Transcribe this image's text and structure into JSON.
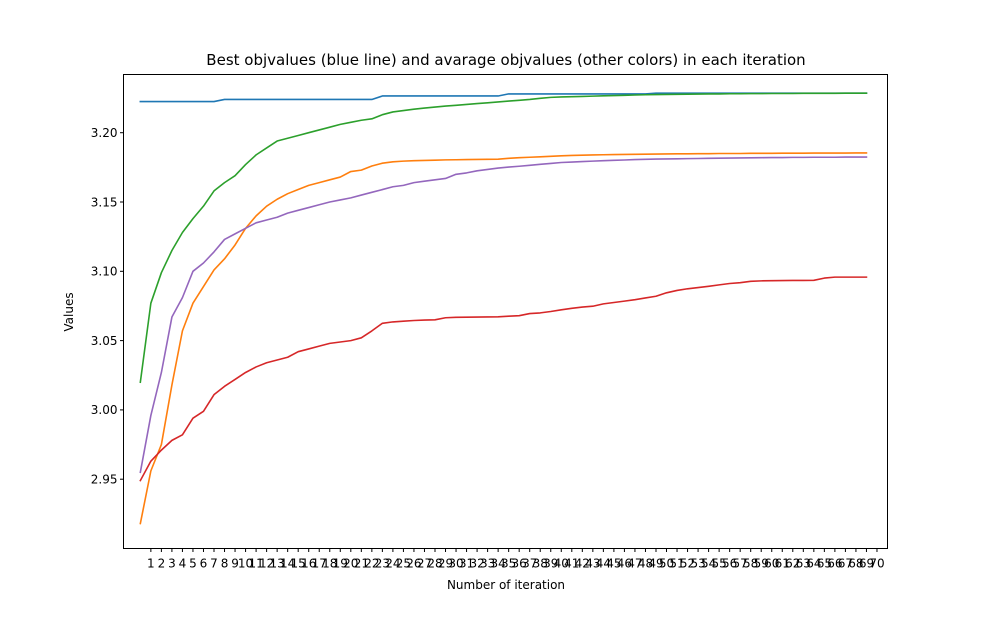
{
  "chart_data": {
    "type": "line",
    "title": "Best objvalues (blue line) and avarage objvalues (other colors) in each iteration",
    "xlabel": "Number of iteration",
    "ylabel": "Values",
    "xlim": [
      -1.6,
      71.0
    ],
    "ylim": [
      2.9,
      3.242
    ],
    "x_ticks": [
      1,
      2,
      3,
      4,
      5,
      6,
      7,
      8,
      9,
      10,
      11,
      12,
      13,
      14,
      15,
      16,
      17,
      18,
      19,
      20,
      21,
      22,
      23,
      24,
      25,
      26,
      27,
      28,
      29,
      30,
      31,
      32,
      33,
      34,
      35,
      36,
      37,
      38,
      39,
      40,
      41,
      42,
      43,
      44,
      45,
      46,
      47,
      48,
      49,
      50,
      51,
      52,
      53,
      54,
      55,
      56,
      57,
      58,
      59,
      60,
      61,
      62,
      63,
      64,
      65,
      66,
      67,
      68,
      69,
      70
    ],
    "y_ticks": [
      2.95,
      3.0,
      3.05,
      3.1,
      3.15,
      3.2
    ],
    "y_tick_labels": [
      "2.95",
      "3.00",
      "3.05",
      "3.10",
      "3.15",
      "3.20"
    ],
    "grid": false,
    "legend": "none",
    "x": [
      0,
      1,
      2,
      3,
      4,
      5,
      6,
      7,
      8,
      9,
      10,
      11,
      12,
      13,
      14,
      15,
      16,
      17,
      18,
      19,
      20,
      21,
      22,
      23,
      24,
      25,
      26,
      27,
      28,
      29,
      30,
      31,
      32,
      33,
      34,
      35,
      36,
      37,
      38,
      39,
      40,
      41,
      42,
      43,
      44,
      45,
      46,
      47,
      48,
      49,
      50,
      51,
      52,
      53,
      54,
      55,
      56,
      57,
      58,
      59,
      60,
      61,
      62,
      63,
      64,
      65,
      66,
      67,
      68,
      69
    ],
    "series": [
      {
        "color": "#1f77b4",
        "values": [
          3.2225,
          3.2225,
          3.2225,
          3.2225,
          3.2225,
          3.2225,
          3.2225,
          3.2225,
          3.224,
          3.224,
          3.224,
          3.224,
          3.224,
          3.224,
          3.224,
          3.224,
          3.224,
          3.224,
          3.224,
          3.224,
          3.224,
          3.224,
          3.224,
          3.2265,
          3.2265,
          3.2265,
          3.2265,
          3.2265,
          3.2265,
          3.2265,
          3.2265,
          3.2265,
          3.2265,
          3.2265,
          3.2265,
          3.228,
          3.228,
          3.228,
          3.228,
          3.228,
          3.228,
          3.228,
          3.228,
          3.228,
          3.228,
          3.228,
          3.228,
          3.228,
          3.228,
          3.2285,
          3.2285,
          3.2285,
          3.2285,
          3.2285,
          3.2285,
          3.2285,
          3.2285,
          3.2285,
          3.2285,
          3.2285,
          3.2285,
          3.2285,
          3.2285,
          3.2285,
          3.2285,
          3.2285,
          3.2285,
          3.2285,
          3.2285,
          3.2285
        ]
      },
      {
        "color": "#ff7f0e",
        "values": [
          2.918,
          2.956,
          2.975,
          3.018,
          3.057,
          3.077,
          3.089,
          3.101,
          3.109,
          3.119,
          3.131,
          3.14,
          3.147,
          3.152,
          3.156,
          3.159,
          3.162,
          3.164,
          3.166,
          3.168,
          3.172,
          3.173,
          3.176,
          3.178,
          3.179,
          3.1795,
          3.1798,
          3.18,
          3.1802,
          3.1804,
          3.1805,
          3.1806,
          3.1807,
          3.1808,
          3.1809,
          3.1815,
          3.182,
          3.1823,
          3.1826,
          3.183,
          3.1833,
          3.1836,
          3.1838,
          3.184,
          3.1841,
          3.1842,
          3.1843,
          3.1844,
          3.1845,
          3.1846,
          3.1847,
          3.1848,
          3.1848,
          3.1849,
          3.1849,
          3.185,
          3.185,
          3.185,
          3.1851,
          3.1851,
          3.1851,
          3.1852,
          3.1852,
          3.1852,
          3.1853,
          3.1853,
          3.1853,
          3.1853,
          3.1854,
          3.1854
        ]
      },
      {
        "color": "#2ca02c",
        "values": [
          3.02,
          3.077,
          3.099,
          3.115,
          3.128,
          3.138,
          3.147,
          3.158,
          3.164,
          3.169,
          3.177,
          3.184,
          3.189,
          3.194,
          3.196,
          3.198,
          3.2,
          3.202,
          3.204,
          3.206,
          3.2075,
          3.209,
          3.21,
          3.213,
          3.215,
          3.216,
          3.217,
          3.2178,
          3.2185,
          3.2192,
          3.2198,
          3.2204,
          3.221,
          3.2216,
          3.2222,
          3.2228,
          3.2234,
          3.224,
          3.2248,
          3.2255,
          3.2258,
          3.226,
          3.2262,
          3.2264,
          3.2266,
          3.2268,
          3.227,
          3.2272,
          3.2274,
          3.2275,
          3.2276,
          3.2277,
          3.2278,
          3.2279,
          3.228,
          3.228,
          3.2281,
          3.2281,
          3.2282,
          3.2282,
          3.2283,
          3.2283,
          3.2283,
          3.2284,
          3.2284,
          3.2284,
          3.2284,
          3.2285,
          3.2285,
          3.2285
        ]
      },
      {
        "color": "#d62728",
        "values": [
          2.949,
          2.963,
          2.971,
          2.978,
          2.982,
          2.994,
          2.999,
          3.011,
          3.017,
          3.022,
          3.027,
          3.031,
          3.034,
          3.036,
          3.038,
          3.042,
          3.044,
          3.046,
          3.048,
          3.049,
          3.05,
          3.052,
          3.057,
          3.0625,
          3.0635,
          3.064,
          3.0645,
          3.0648,
          3.065,
          3.0665,
          3.0668,
          3.0669,
          3.067,
          3.0671,
          3.0672,
          3.0676,
          3.068,
          3.0695,
          3.07,
          3.071,
          3.0722,
          3.0733,
          3.0742,
          3.0748,
          3.0765,
          3.0775,
          3.0785,
          3.0795,
          3.0808,
          3.082,
          3.0845,
          3.0862,
          3.0874,
          3.0883,
          3.0892,
          3.0902,
          3.0912,
          3.0918,
          3.0928,
          3.0931,
          3.0932,
          3.0933,
          3.0934,
          3.0934,
          3.0935,
          3.0951,
          3.0958,
          3.0958,
          3.0958,
          3.0958
        ]
      },
      {
        "color": "#9467bd",
        "values": [
          2.955,
          2.996,
          3.027,
          3.067,
          3.081,
          3.1,
          3.106,
          3.114,
          3.123,
          3.127,
          3.131,
          3.135,
          3.137,
          3.139,
          3.142,
          3.144,
          3.146,
          3.148,
          3.15,
          3.1515,
          3.153,
          3.155,
          3.157,
          3.159,
          3.161,
          3.162,
          3.164,
          3.165,
          3.166,
          3.167,
          3.17,
          3.171,
          3.1725,
          3.1735,
          3.1745,
          3.1752,
          3.1758,
          3.1765,
          3.1772,
          3.1778,
          3.1785,
          3.1788,
          3.1792,
          3.1795,
          3.1798,
          3.1801,
          3.1803,
          3.1806,
          3.1808,
          3.181,
          3.1811,
          3.1812,
          3.1813,
          3.1814,
          3.1815,
          3.1816,
          3.1817,
          3.1818,
          3.1819,
          3.182,
          3.1821,
          3.1821,
          3.1822,
          3.1822,
          3.1823,
          3.1823,
          3.1823,
          3.1824,
          3.1824,
          3.1824
        ]
      }
    ]
  }
}
